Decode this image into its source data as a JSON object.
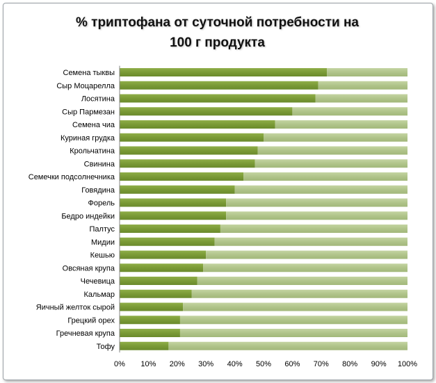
{
  "chart_data": {
    "type": "bar",
    "orientation": "horizontal",
    "stacked_to_100": true,
    "title_lines": [
      "% триптофана от суточной потребности на",
      "100 г продукта"
    ],
    "categories": [
      "Семена тыквы",
      "Сыр Моцарелла",
      "Лосятина",
      "Сыр Пармезан",
      "Семена чиа",
      "Куриная грудка",
      "Крольчатина",
      "Свинина",
      "Семечки подсолнечника",
      "Говядина",
      "Форель",
      "Бедро индейки",
      "Палтус",
      "Мидии",
      "Кешью",
      "Овсяная крупа",
      "Чечевица",
      "Кальмар",
      "Яичный желток сырой",
      "Грецкий орех",
      "Гречневая крупа",
      "Тофу"
    ],
    "series": [
      {
        "values": [
          72,
          69,
          68,
          60,
          54,
          50,
          48,
          47,
          43,
          40,
          37,
          37,
          35,
          33,
          30,
          29,
          27,
          25,
          22,
          21,
          21,
          17
        ]
      },
      {
        "values": [
          28,
          31,
          32,
          40,
          46,
          50,
          52,
          53,
          57,
          60,
          63,
          63,
          65,
          67,
          70,
          71,
          73,
          75,
          78,
          79,
          79,
          83
        ]
      }
    ],
    "x_ticks": [
      "0%",
      "10%",
      "20%",
      "30%",
      "40%",
      "50%",
      "60%",
      "70%",
      "80%",
      "90%",
      "100%"
    ],
    "xlim": [
      0,
      100
    ],
    "grid": false,
    "legend": "none",
    "colors": {
      "series_1": "#7a9a3a",
      "series_2": "#b0c48a",
      "frame": "#9aa1a6"
    }
  }
}
